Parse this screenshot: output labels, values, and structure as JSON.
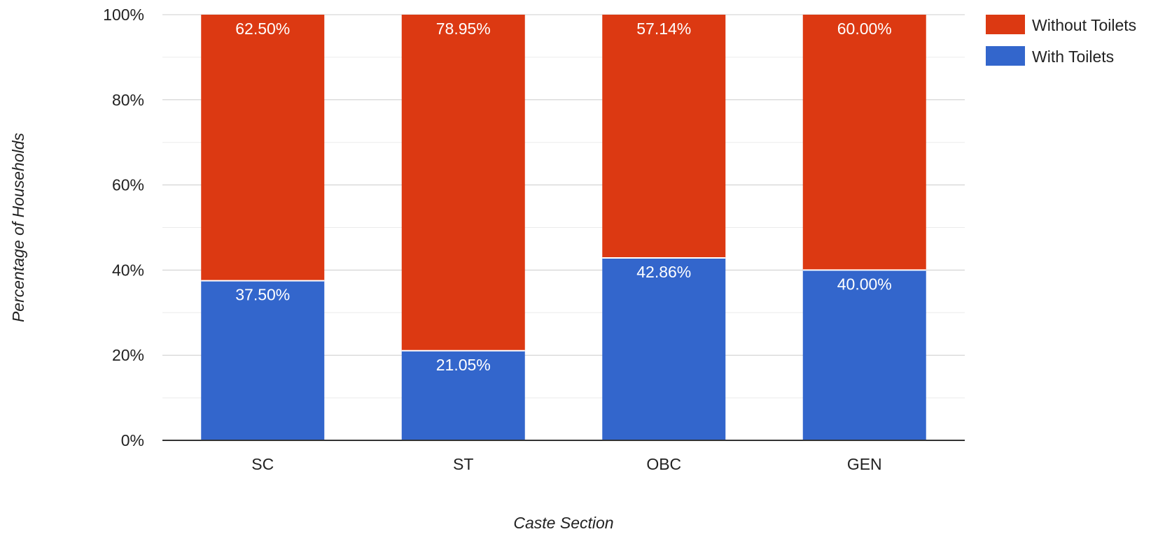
{
  "chart_data": {
    "type": "bar",
    "stacked": true,
    "categories": [
      "SC",
      "ST",
      "OBC",
      "GEN"
    ],
    "series": [
      {
        "name": "With Toilets",
        "color": "#3366cc",
        "values": [
          37.5,
          21.05,
          42.86,
          40.0
        ],
        "labels": [
          "37.50%",
          "21.05%",
          "42.86%",
          "40.00%"
        ]
      },
      {
        "name": "Without Toilets",
        "color": "#dc3912",
        "values": [
          62.5,
          78.95,
          57.14,
          60.0
        ],
        "labels": [
          "62.50%",
          "78.95%",
          "57.14%",
          "60.00%"
        ]
      }
    ],
    "legend_order": [
      "Without Toilets",
      "With Toilets"
    ],
    "legend_position": "top-right",
    "title": "",
    "xlabel": "Caste Section",
    "ylabel": "Percentage of Households",
    "ylim": [
      0,
      100
    ],
    "y_ticks": [
      0,
      20,
      40,
      60,
      80,
      100
    ],
    "y_tick_labels": [
      "0%",
      "20%",
      "40%",
      "60%",
      "80%",
      "100%"
    ],
    "grid": true
  }
}
